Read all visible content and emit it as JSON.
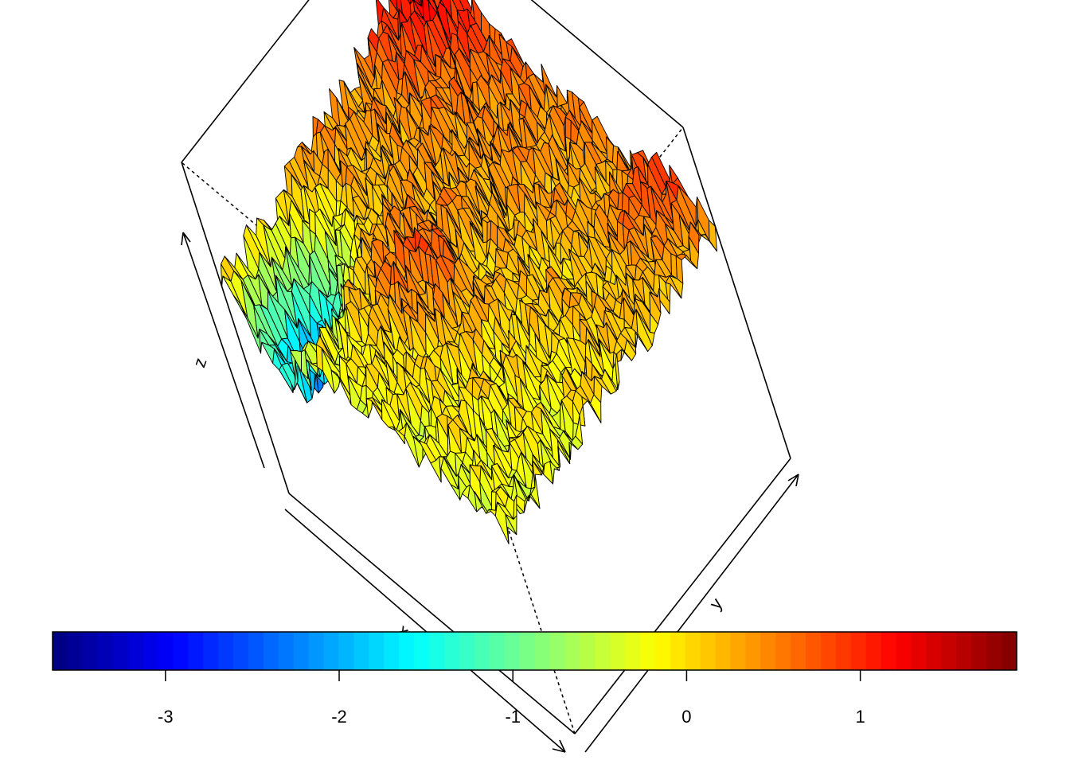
{
  "chart_data": {
    "type": "surface3d",
    "title": "",
    "axes": {
      "x": {
        "label": "x"
      },
      "y": {
        "label": "y"
      },
      "z": {
        "label": "z"
      }
    },
    "grid": false,
    "legend": {
      "type": "colorbar",
      "placement": "bottom",
      "range": [
        -3.65,
        1.9
      ],
      "ticks": [
        -3,
        -2,
        -1,
        0,
        1
      ],
      "tick_labels": [
        "-3",
        "-2",
        "-1",
        "0",
        "1"
      ],
      "palette": [
        "#00007F",
        "#0000FF",
        "#007FFF",
        "#00FFFF",
        "#7FFF7F",
        "#FFFF00",
        "#FF7F00",
        "#FF0000",
        "#7F0000"
      ]
    },
    "surface_summary": {
      "z_min": -3.6,
      "z_max": 1.9,
      "description_of_shape": "rough random field, higher toward the back and right, lowest on the left edge"
    }
  }
}
